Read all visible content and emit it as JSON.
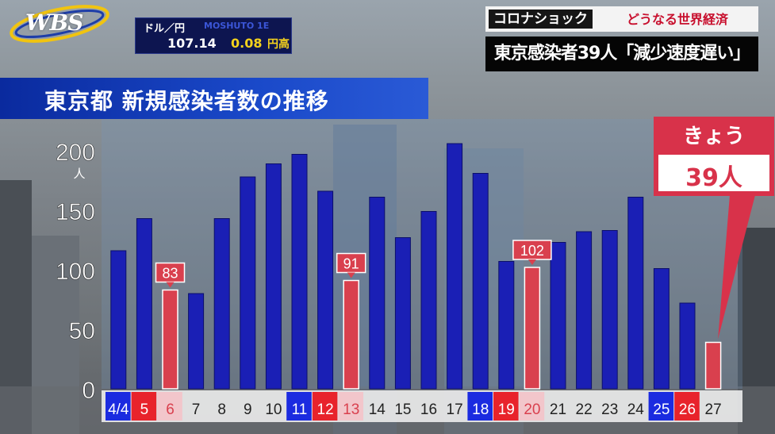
{
  "logo": {
    "text": "WBS"
  },
  "exchange": {
    "label": "ドル／円",
    "rate": "107.14",
    "change": "0.08",
    "direction": "円高",
    "scroll_text": "MOSHUTO 1E"
  },
  "ticker": {
    "tag": "コロナショック",
    "subtitle": "どうなる世界経済"
  },
  "headline": "東京感染者39人「減少速度遅い」",
  "chart_title": "東京都 新規感染者数の推移",
  "today_callout": {
    "label": "きょう",
    "value": "39人"
  },
  "colors": {
    "blue_bar": "#1a1fb5",
    "red_bar": "#d9404e",
    "title_bar": "#1a49c9",
    "saturday": "#1b2be0",
    "sunday": "#e8232b"
  },
  "chart_data": {
    "type": "bar",
    "title": "東京都 新規感染者数の推移",
    "ylabel": "人",
    "ylim": [
      0,
      200
    ],
    "yticks": [
      0,
      50,
      100,
      150,
      200
    ],
    "categories": [
      "4/4",
      "5",
      "6",
      "7",
      "8",
      "9",
      "10",
      "11",
      "12",
      "13",
      "14",
      "15",
      "16",
      "17",
      "18",
      "19",
      "20",
      "21",
      "22",
      "23",
      "24",
      "25",
      "26",
      "27"
    ],
    "values": [
      116,
      143,
      83,
      80,
      143,
      178,
      189,
      197,
      166,
      91,
      161,
      127,
      149,
      206,
      181,
      107,
      102,
      123,
      132,
      133,
      161,
      101,
      72,
      39
    ],
    "highlighted": [
      2,
      9,
      16,
      23
    ],
    "labeled": [
      {
        "index": 2,
        "label": "83"
      },
      {
        "index": 9,
        "label": "91"
      },
      {
        "index": 16,
        "label": "102"
      }
    ],
    "label_styles": [
      "sat",
      "sun",
      "hol",
      "",
      "",
      "",
      "",
      "sat",
      "sun",
      "hol",
      "",
      "",
      "",
      "",
      "sat",
      "sun",
      "hol",
      "",
      "",
      "",
      "",
      "sat",
      "sun",
      ""
    ]
  }
}
